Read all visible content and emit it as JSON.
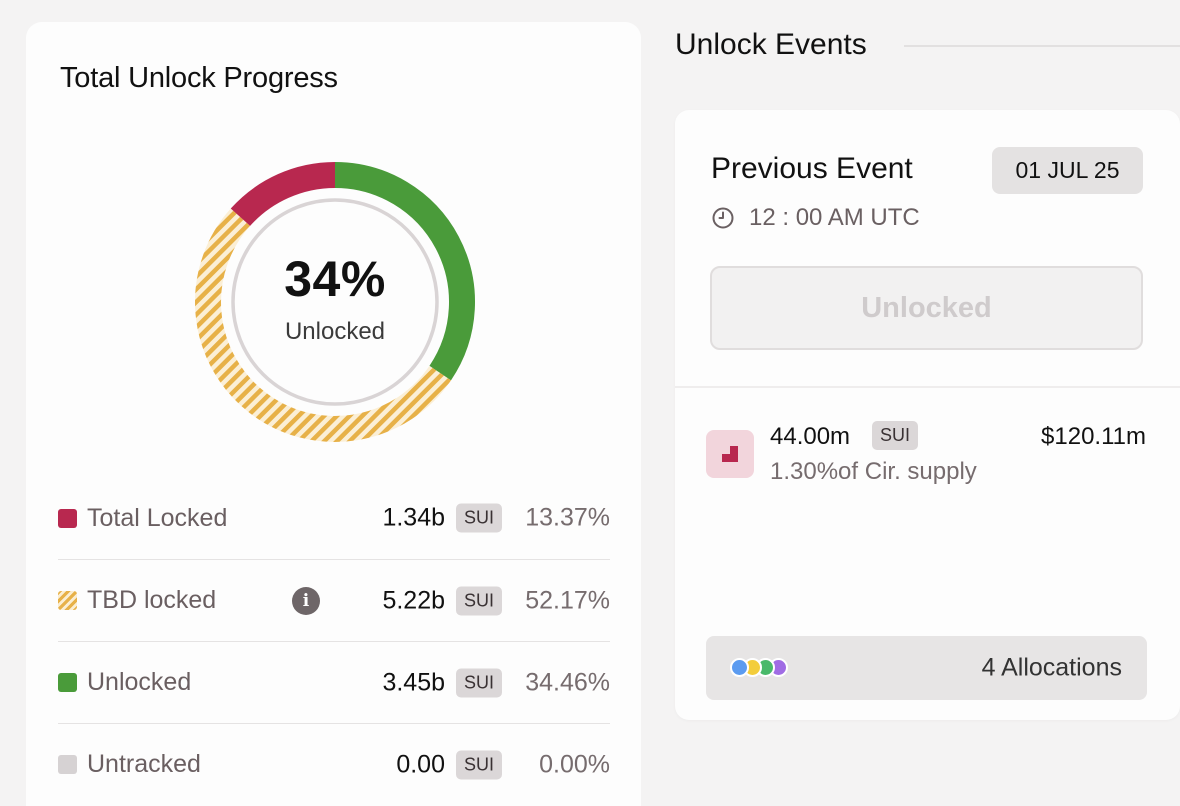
{
  "progress": {
    "title": "Total Unlock Progress",
    "percent_text": "34%",
    "center_label": "Unlocked",
    "donut_segments": [
      {
        "name": "Unlocked",
        "percent": 34.46,
        "color": "#4a9b3a",
        "pattern": "solid"
      },
      {
        "name": "TBD locked",
        "percent": 52.17,
        "color": "#e7b148",
        "pattern": "striped"
      },
      {
        "name": "Total Locked",
        "percent": 13.37,
        "color": "#b8284f",
        "pattern": "solid"
      }
    ],
    "legend": [
      {
        "label": "Total Locked",
        "amount": "1.34b",
        "unit": "SUI",
        "percent": "13.37%",
        "swatch": "solid-crimson",
        "info": false
      },
      {
        "label": "TBD locked",
        "amount": "5.22b",
        "unit": "SUI",
        "percent": "52.17%",
        "swatch": "striped-amber",
        "info": true
      },
      {
        "label": "Unlocked",
        "amount": "3.45b",
        "unit": "SUI",
        "percent": "34.46%",
        "swatch": "solid-green",
        "info": false
      },
      {
        "label": "Untracked",
        "amount": "0.00",
        "unit": "SUI",
        "percent": "0.00%",
        "swatch": "solid-gray",
        "info": false
      }
    ]
  },
  "events": {
    "title": "Unlock Events",
    "previous": {
      "heading": "Previous Event",
      "date": "01 JUL 25",
      "time": "12 : 00 AM UTC",
      "status_button": "Unlocked",
      "amount": "44.00m",
      "unit": "SUI",
      "usd_value": "$120.11m",
      "supply_text": "1.30%of Cir. supply",
      "allocations_text": "4 Allocations",
      "allocation_dot_colors": [
        "#5b9bf0",
        "#f3cd3c",
        "#49b96a",
        "#a06ce4"
      ]
    }
  },
  "colors": {
    "accent_locked": "#b8284f",
    "accent_tbd": "#e7b148",
    "accent_unlocked": "#4a9b3a",
    "untracked": "#d6d2d3"
  }
}
